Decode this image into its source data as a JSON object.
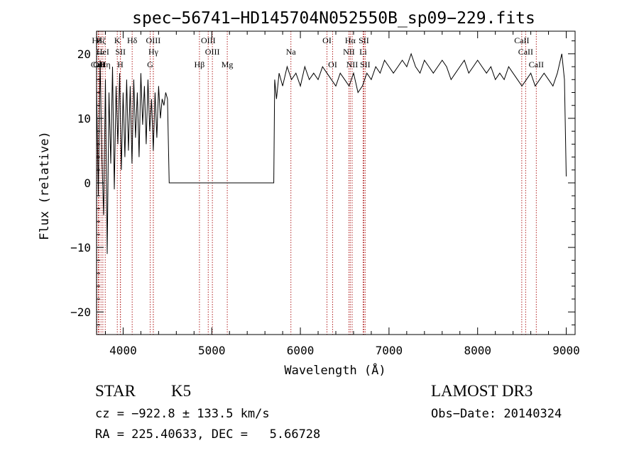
{
  "chart_data": {
    "type": "line",
    "title": "spec−56741−HD145704N052550B_sp09−229.fits",
    "xlabel": "Wavelength (Å)",
    "ylabel": "Flux (relative)",
    "xlim": [
      3700,
      9100
    ],
    "ylim": [
      -23.5,
      23.5
    ],
    "xticks": [
      4000,
      5000,
      6000,
      7000,
      8000,
      9000
    ],
    "xtick_labels": [
      "4000",
      "5000",
      "6000",
      "7000",
      "8000",
      "9000"
    ],
    "yticks": [
      -20,
      -10,
      0,
      10,
      20
    ],
    "ytick_labels": [
      "−20",
      "−10",
      "0",
      "10",
      "20"
    ],
    "grid": false,
    "line_color": "#000000",
    "marker_color": "#b22222",
    "series": [
      {
        "x": [
          3700,
          3720,
          3740,
          3760,
          3780,
          3800,
          3820,
          3840,
          3860,
          3880,
          3900,
          3920,
          3940,
          3960,
          3980,
          4000,
          4020,
          4040,
          4060,
          4080,
          4100,
          4120,
          4140,
          4160,
          4180,
          4200,
          4220,
          4240,
          4260,
          4280,
          4300,
          4320,
          4340,
          4360,
          4380,
          4400,
          4420,
          4440,
          4460,
          4480,
          4500,
          4520,
          4540,
          5700,
          5710,
          5730,
          5760,
          5800,
          5850,
          5900,
          5950,
          6000,
          6050,
          6100,
          6150,
          6200,
          6250,
          6300,
          6350,
          6400,
          6450,
          6500,
          6550,
          6600,
          6650,
          6700,
          6750,
          6800,
          6850,
          6900,
          6950,
          7000,
          7050,
          7100,
          7150,
          7200,
          7250,
          7300,
          7350,
          7400,
          7450,
          7500,
          7550,
          7600,
          7650,
          7700,
          7750,
          7800,
          7850,
          7900,
          7950,
          8000,
          8050,
          8100,
          8150,
          8200,
          8250,
          8300,
          8350,
          8400,
          8450,
          8500,
          8550,
          8600,
          8650,
          8700,
          8750,
          8800,
          8850,
          8900,
          8950,
          8980,
          9000
        ],
        "values": [
          15,
          -2,
          19,
          4,
          -5,
          16,
          -11,
          14,
          3,
          18,
          -1,
          15,
          6,
          17,
          2,
          14,
          4,
          16,
          5,
          15,
          3,
          16,
          7,
          14,
          4,
          17,
          9,
          15,
          6,
          16,
          8,
          13,
          5,
          14,
          7,
          15,
          10,
          13,
          12,
          14,
          13,
          0,
          0,
          0,
          16,
          13,
          17,
          15,
          18,
          16,
          17,
          15,
          18,
          16,
          17,
          16,
          18,
          17,
          16,
          15,
          17,
          16,
          15,
          17,
          14,
          15,
          17,
          16,
          18,
          17,
          19,
          18,
          17,
          18,
          19,
          18,
          20,
          18,
          17,
          19,
          18,
          17,
          18,
          19,
          18,
          16,
          17,
          18,
          19,
          17,
          18,
          19,
          18,
          17,
          18,
          16,
          17,
          16,
          18,
          17,
          16,
          15,
          16,
          17,
          15,
          16,
          17,
          16,
          15,
          17,
          20,
          16,
          1
        ]
      }
    ],
    "line_markers": [
      {
        "label": "Hδ",
        "x": 3704,
        "row": 1
      },
      {
        "label": "CaII",
        "x": 3720,
        "row": 3
      },
      {
        "label": "OII",
        "x": 3728,
        "row": 3
      },
      {
        "label": "Hζ",
        "x": 3750,
        "row": 1
      },
      {
        "label": "HeI",
        "x": 3771,
        "row": 2
      },
      {
        "label": "Hη",
        "x": 3798,
        "row": 3
      },
      {
        "label": "K",
        "x": 3934,
        "row": 1
      },
      {
        "label": "SII",
        "x": 3970,
        "row": 2
      },
      {
        "label": "H",
        "x": 3968,
        "row": 3
      },
      {
        "label": "Hδ",
        "x": 4102,
        "row": 1
      },
      {
        "label": "OIII",
        "x": 4340,
        "row": 1
      },
      {
        "label": "Hγ",
        "x": 4341,
        "row": 2
      },
      {
        "label": "G",
        "x": 4305,
        "row": 3
      },
      {
        "label": "OIII",
        "x": 4960,
        "row": 1
      },
      {
        "label": "OIII",
        "x": 5007,
        "row": 2
      },
      {
        "label": "Hβ",
        "x": 4861,
        "row": 3
      },
      {
        "label": "Mg",
        "x": 5175,
        "row": 3
      },
      {
        "label": "Na",
        "x": 5893,
        "row": 2
      },
      {
        "label": "OI",
        "x": 6300,
        "row": 1
      },
      {
        "label": "OI",
        "x": 6364,
        "row": 3
      },
      {
        "label": "Hα",
        "x": 6563,
        "row": 1
      },
      {
        "label": "NII",
        "x": 6548,
        "row": 2
      },
      {
        "label": "NII",
        "x": 6584,
        "row": 3
      },
      {
        "label": "SII",
        "x": 6716,
        "row": 1
      },
      {
        "label": "Li",
        "x": 6708,
        "row": 2
      },
      {
        "label": "SII",
        "x": 6731,
        "row": 3
      },
      {
        "label": "CaII",
        "x": 8498,
        "row": 1
      },
      {
        "label": "CaII",
        "x": 8542,
        "row": 2
      },
      {
        "label": "CaII",
        "x": 8662,
        "row": 3
      }
    ]
  },
  "info": {
    "object_type": "STAR",
    "subclass": "K5",
    "survey": "LAMOST DR3",
    "cz": "cz = −922.8 ± 133.5 km/s",
    "obs_date": "Obs−Date: 20140324",
    "coords": "RA = 225.40633, DEC =   5.66728"
  }
}
